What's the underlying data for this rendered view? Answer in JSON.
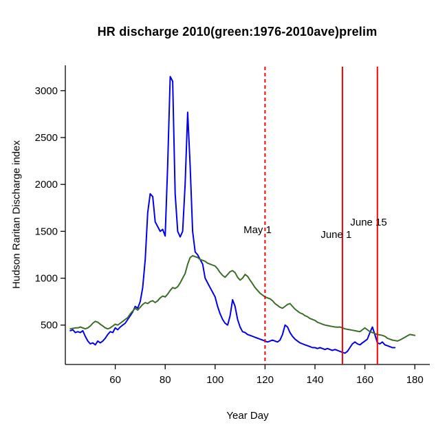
{
  "chart_data": {
    "type": "line",
    "title": "HR discharge 2010(green:1976-2010ave)prelim",
    "xlabel": "Year Day",
    "ylabel": "Hudson Raritan Discharge index",
    "xlim": [
      40,
      186
    ],
    "ylim": [
      80,
      3270
    ],
    "x_ticks": [
      60,
      80,
      100,
      120,
      140,
      160,
      180
    ],
    "y_ticks": [
      500,
      1000,
      1500,
      2000,
      2500,
      3000
    ],
    "grid": false,
    "legend": "none",
    "background": "#ffffff",
    "axis_color": "#000000",
    "series": [
      {
        "id": "2010",
        "name": "2010 discharge",
        "color": "#0000ee",
        "x_start": 42,
        "x_step": 1,
        "values": [
          440,
          450,
          420,
          430,
          420,
          440,
          380,
          330,
          300,
          310,
          290,
          330,
          310,
          330,
          360,
          400,
          430,
          420,
          470,
          450,
          480,
          500,
          520,
          560,
          600,
          640,
          700,
          680,
          750,
          900,
          1200,
          1700,
          1900,
          1870,
          1600,
          1550,
          1500,
          1520,
          1450,
          2200,
          3150,
          3100,
          1900,
          1500,
          1440,
          1500,
          2000,
          2770,
          2200,
          1500,
          1280,
          1250,
          1200,
          1150,
          1000,
          950,
          900,
          850,
          800,
          700,
          620,
          560,
          520,
          500,
          600,
          770,
          700,
          560,
          480,
          430,
          420,
          400,
          390,
          380,
          370,
          360,
          350,
          340,
          330,
          320,
          330,
          340,
          330,
          320,
          340,
          400,
          500,
          480,
          420,
          380,
          350,
          330,
          310,
          300,
          290,
          280,
          270,
          260,
          260,
          250,
          260,
          250,
          240,
          250,
          240,
          230,
          240,
          230,
          220,
          210,
          200,
          220,
          260,
          300,
          320,
          300,
          290,
          310,
          330,
          350,
          420,
          480,
          400,
          310,
          300,
          320,
          290,
          280,
          270,
          260,
          260
        ]
      },
      {
        "id": "average",
        "name": "1976-2010 average",
        "color": "#3a6e28",
        "x_start": 42,
        "x_step": 1,
        "values": [
          460,
          465,
          470,
          470,
          480,
          470,
          460,
          470,
          490,
          520,
          540,
          530,
          510,
          490,
          470,
          460,
          470,
          490,
          510,
          500,
          520,
          540,
          560,
          580,
          620,
          650,
          680,
          660,
          690,
          720,
          740,
          730,
          750,
          760,
          740,
          760,
          790,
          810,
          800,
          830,
          870,
          900,
          890,
          910,
          950,
          1000,
          1050,
          1150,
          1220,
          1240,
          1230,
          1220,
          1200,
          1190,
          1180,
          1160,
          1150,
          1140,
          1130,
          1100,
          1060,
          1030,
          1010,
          1040,
          1070,
          1080,
          1060,
          1010,
          980,
          1000,
          1040,
          1020,
          980,
          940,
          900,
          870,
          840,
          820,
          800,
          790,
          780,
          760,
          730,
          710,
          690,
          680,
          700,
          720,
          730,
          700,
          670,
          650,
          630,
          620,
          600,
          590,
          570,
          560,
          550,
          530,
          520,
          510,
          500,
          495,
          490,
          485,
          480,
          478,
          480,
          470,
          460,
          455,
          450,
          445,
          440,
          435,
          430,
          450,
          470,
          450,
          430,
          420,
          410,
          400,
          395,
          390,
          380,
          360,
          350,
          340,
          335,
          330,
          340,
          355,
          370,
          385,
          400,
          395,
          390
        ]
      }
    ],
    "annotations": {
      "vlines": [
        {
          "x": 120,
          "label": "May 1",
          "color": "#ff0000",
          "style": "dashed",
          "label_x": 117,
          "label_y": 1480
        },
        {
          "x": 151,
          "label": "June 1",
          "color": "#ff0000",
          "style": "solid",
          "label_x": 148.5,
          "label_y": 1430
        },
        {
          "x": 165,
          "label": "June 15",
          "color": "#ff0000",
          "style": "solid",
          "label_x": 161.5,
          "label_y": 1560
        }
      ]
    }
  }
}
